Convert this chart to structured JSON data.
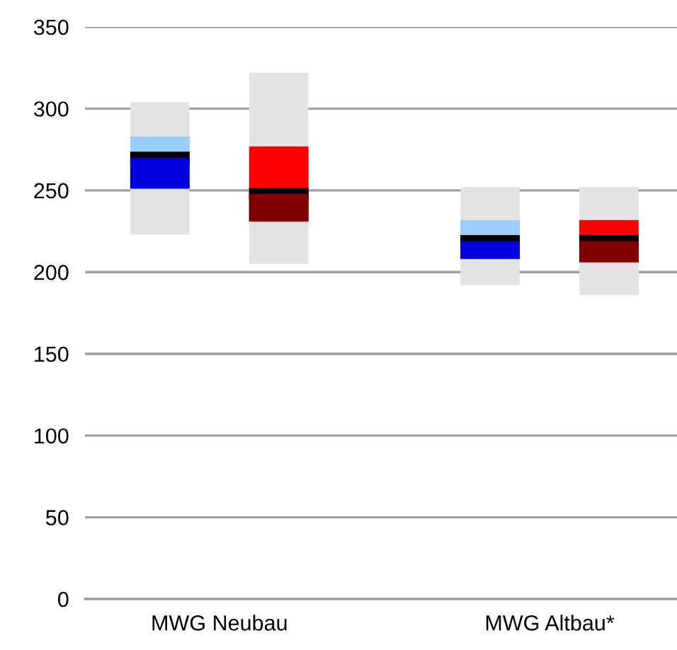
{
  "chart_data": {
    "type": "box",
    "categories": [
      "MWG Neubau",
      "MWG Altbau*"
    ],
    "series": [
      {
        "colors": [
          "#0000dd",
          "#99ccff"
        ],
        "boxes": [
          {
            "low": 223,
            "q1": 251,
            "median": 270,
            "q3": 283,
            "high": 304
          },
          {
            "low": 192,
            "q1": 208,
            "median": 219,
            "q3": 232,
            "high": 252
          }
        ]
      },
      {
        "colors": [
          "#800000",
          "#ff0000"
        ],
        "boxes": [
          {
            "low": 205,
            "q1": 231,
            "median": 248,
            "q3": 277,
            "high": 322
          },
          {
            "low": 186,
            "q1": 206,
            "median": 219,
            "q3": 232,
            "high": 252
          }
        ]
      }
    ],
    "ylim": [
      0,
      350
    ],
    "yticks": [
      0,
      50,
      100,
      150,
      200,
      250,
      300,
      350
    ],
    "grid": "y"
  }
}
